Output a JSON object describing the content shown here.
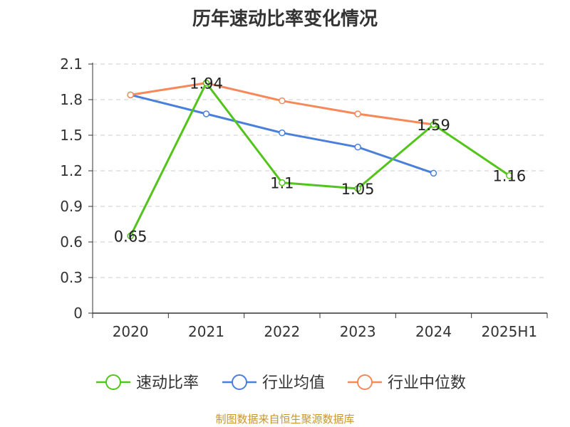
{
  "chart_data": {
    "type": "line",
    "title": "历年速动比率变化情况",
    "categories": [
      "2020",
      "2021",
      "2022",
      "2023",
      "2024",
      "2025H1"
    ],
    "ylim": [
      0,
      2.1
    ],
    "yticks": [
      "0",
      "0.3",
      "0.6",
      "0.9",
      "1.2",
      "1.5",
      "1.8",
      "2.1"
    ],
    "grid": true,
    "legend_position": "bottom",
    "series": [
      {
        "name": "速动比率",
        "color": "#52c41a",
        "values": [
          0.65,
          1.94,
          1.1,
          1.05,
          1.59,
          1.16
        ],
        "labels": [
          "0.65",
          "1.94",
          "1.1",
          "1.05",
          "1.59",
          "1.16"
        ]
      },
      {
        "name": "行业均值",
        "color": "#4a7fdc",
        "values": [
          1.84,
          1.68,
          1.52,
          1.4,
          1.18,
          null
        ]
      },
      {
        "name": "行业中位数",
        "color": "#f5895a",
        "values": [
          1.84,
          1.94,
          1.79,
          1.68,
          1.59,
          null
        ]
      }
    ]
  },
  "footer": {
    "source": "制图数据来自恒生聚源数据库"
  }
}
